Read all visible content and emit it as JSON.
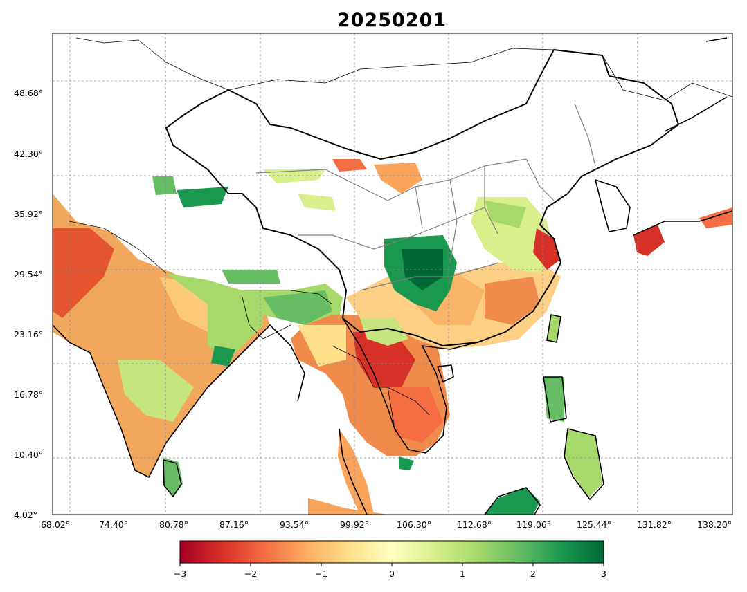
{
  "title": "20250201",
  "x_ticks": [
    "68.02°",
    "74.40°",
    "80.78°",
    "87.16°",
    "93.54°",
    "99.92°",
    "106.30°",
    "112.68°",
    "119.06°",
    "125.44°",
    "131.82°",
    "138.20°"
  ],
  "y_ticks": [
    "48.68°",
    "42.30°",
    "35.92°",
    "29.54°",
    "23.16°",
    "16.78°",
    "10.40°",
    "4.02°"
  ],
  "colorbar": {
    "ticks": [
      "−3",
      "−2",
      "−1",
      "0",
      "1",
      "2",
      "3"
    ],
    "min": -3,
    "max": 3,
    "colormap": "RdYlGn",
    "colors": [
      "#a50026",
      "#d73027",
      "#f46d43",
      "#fdae61",
      "#fee08b",
      "#ffffbf",
      "#d9ef8b",
      "#a6d96a",
      "#66bd63",
      "#1a9850",
      "#006837"
    ]
  }
}
